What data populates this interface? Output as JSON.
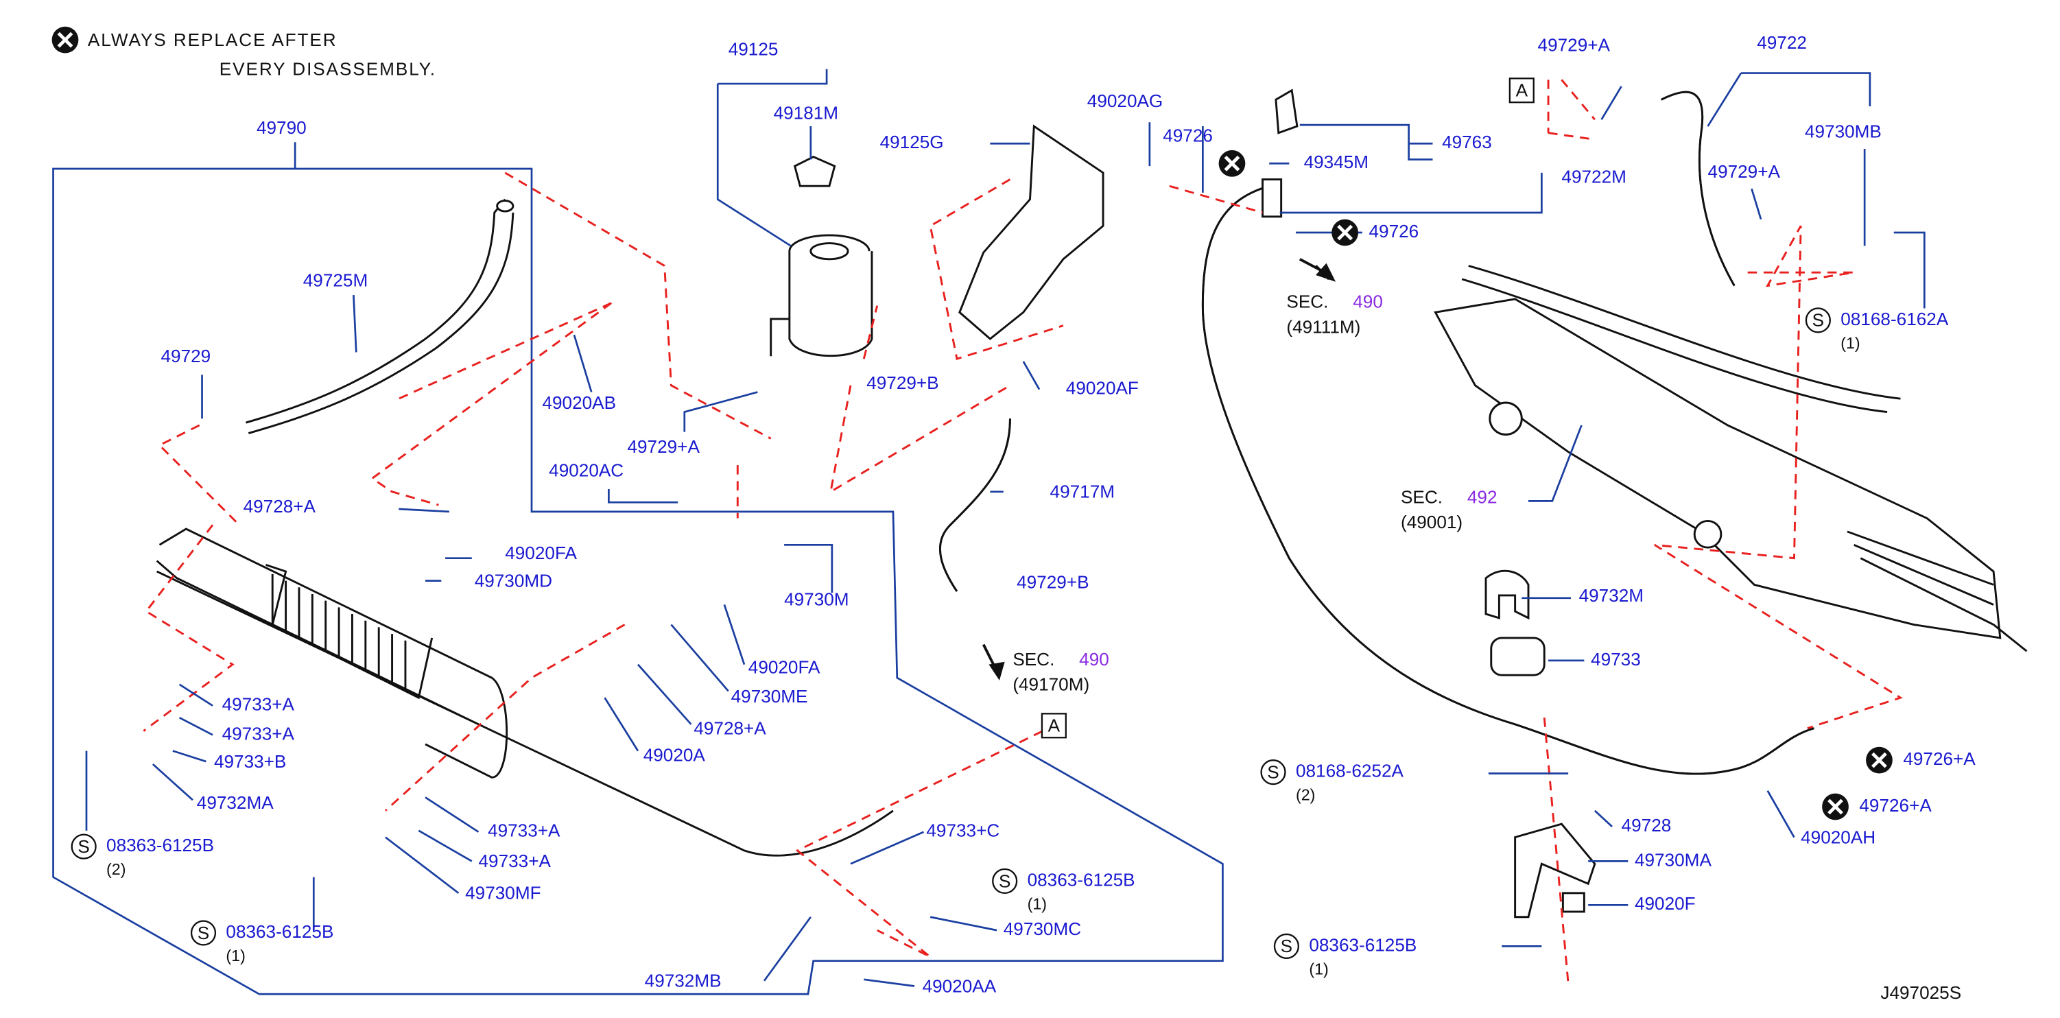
{
  "note": [
    "ALWAYS REPLACE AFTER",
    "EVERY DISASSEMBLY."
  ],
  "callouts": [
    "49125",
    "49181M",
    "49125G",
    "49790",
    "49725M",
    "49729",
    "49020AB",
    "49729+A",
    "49729+B",
    "49020AF",
    "49020AC",
    "49728+A",
    "49020FA",
    "49730MD",
    "49717M",
    "49730M",
    "49729+B",
    "49020FA",
    "49730ME",
    "49728+A",
    "49020A",
    "49733+A",
    "49733+A",
    "49733+B",
    "49732MA",
    "49733+A",
    "49733+A",
    "49730MF",
    "49733+C",
    "49730MC",
    "49732MB",
    "49020AA",
    "49020AG",
    "49726",
    "49345M",
    "49763",
    "49729+A",
    "49722",
    "49730MB",
    "49722M",
    "49729+A",
    "49726",
    "49732M",
    "49733",
    "49728",
    "49730MA",
    "49020F",
    "49726+A",
    "49726+A",
    "49020AH"
  ],
  "standard_parts": [
    {
      "symbol": "S",
      "part": "08363-6125B",
      "qty": "(2)"
    },
    {
      "symbol": "S",
      "part": "08363-6125B",
      "qty": "(1)"
    },
    {
      "symbol": "S",
      "part": "08363-6125B",
      "qty": "(1)"
    },
    {
      "symbol": "S",
      "part": "08168-6162A",
      "qty": "(1)"
    },
    {
      "symbol": "S",
      "part": "08168-6252A",
      "qty": "(2)"
    },
    {
      "symbol": "S",
      "part": "08363-6125B",
      "qty": "(1)"
    }
  ],
  "sections": [
    {
      "prefix": "SEC.",
      "number": "490",
      "ref": "(49170M)"
    },
    {
      "prefix": "SEC.",
      "number": "490",
      "ref": "(49111M)"
    },
    {
      "prefix": "SEC.",
      "number": "492",
      "ref": "(49001)"
    }
  ],
  "reference_marks": [
    "A",
    "A"
  ],
  "diagram_id": "J497025S"
}
